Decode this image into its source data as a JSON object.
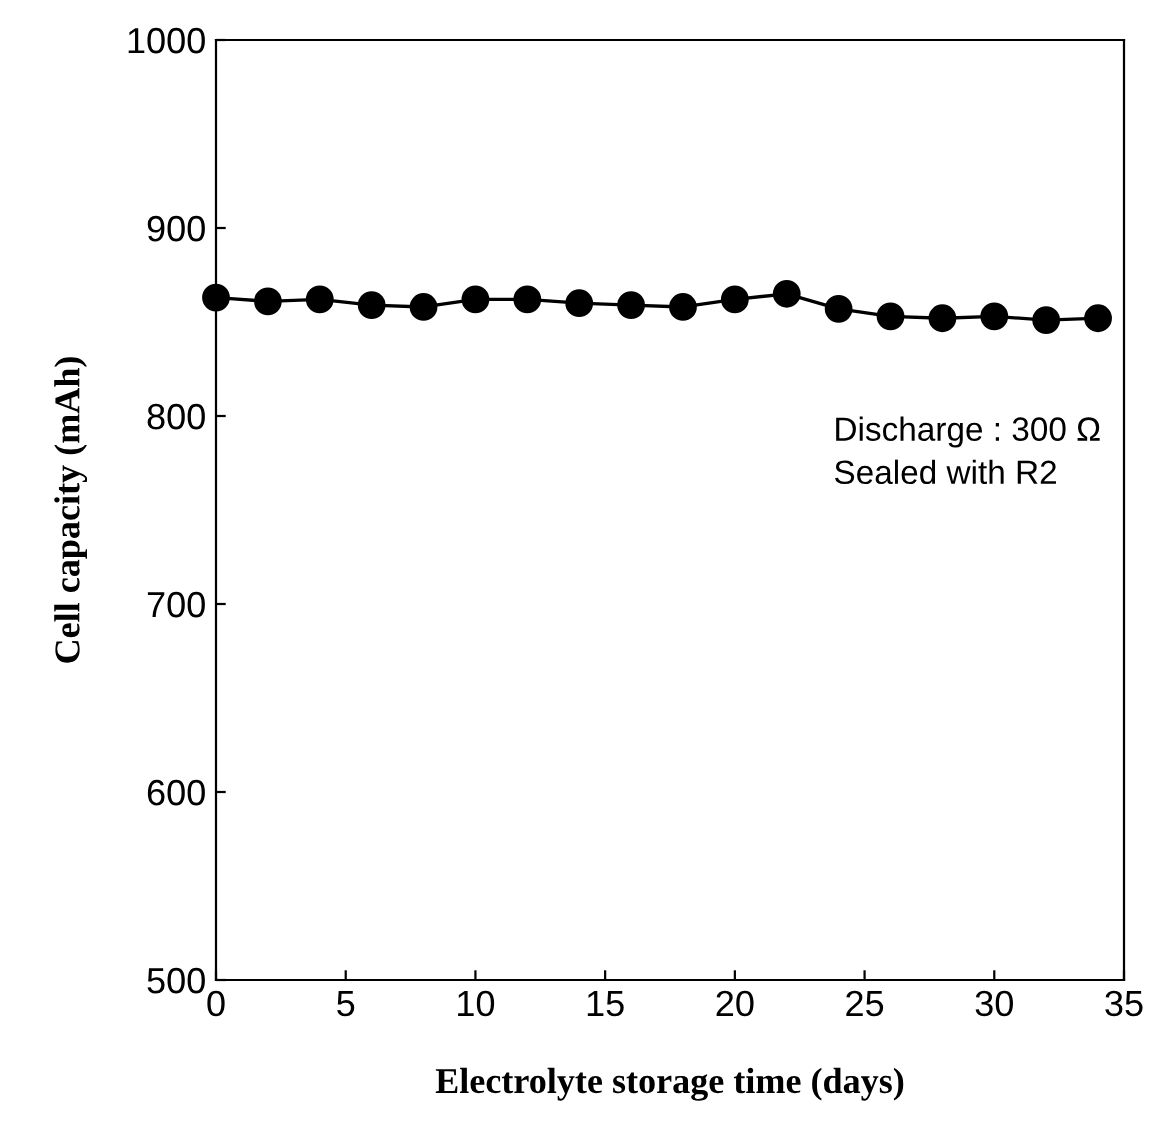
{
  "chart_data": {
    "type": "line",
    "xlabel": "Electrolyte storage time (days)",
    "ylabel": "Cell capacity (mAh)",
    "x": [
      0,
      2,
      4,
      6,
      8,
      10,
      12,
      14,
      16,
      18,
      20,
      22,
      24,
      26,
      28,
      30,
      32,
      34
    ],
    "values": [
      863,
      861,
      862,
      859,
      858,
      862,
      862,
      860,
      859,
      858,
      862,
      865,
      857,
      853,
      852,
      853,
      851,
      852
    ],
    "color": "#000000",
    "marker": "circle",
    "line_style": "solid",
    "xlim": [
      0,
      35
    ],
    "xticks": [
      0,
      5,
      10,
      15,
      20,
      25,
      30,
      35
    ],
    "ylim": [
      500,
      1000
    ],
    "yticks": [
      500,
      600,
      700,
      800,
      900,
      1000
    ],
    "grid": false,
    "legend": false,
    "annotations": [
      "Discharge : 300 Ω\nSealed with R2"
    ]
  }
}
